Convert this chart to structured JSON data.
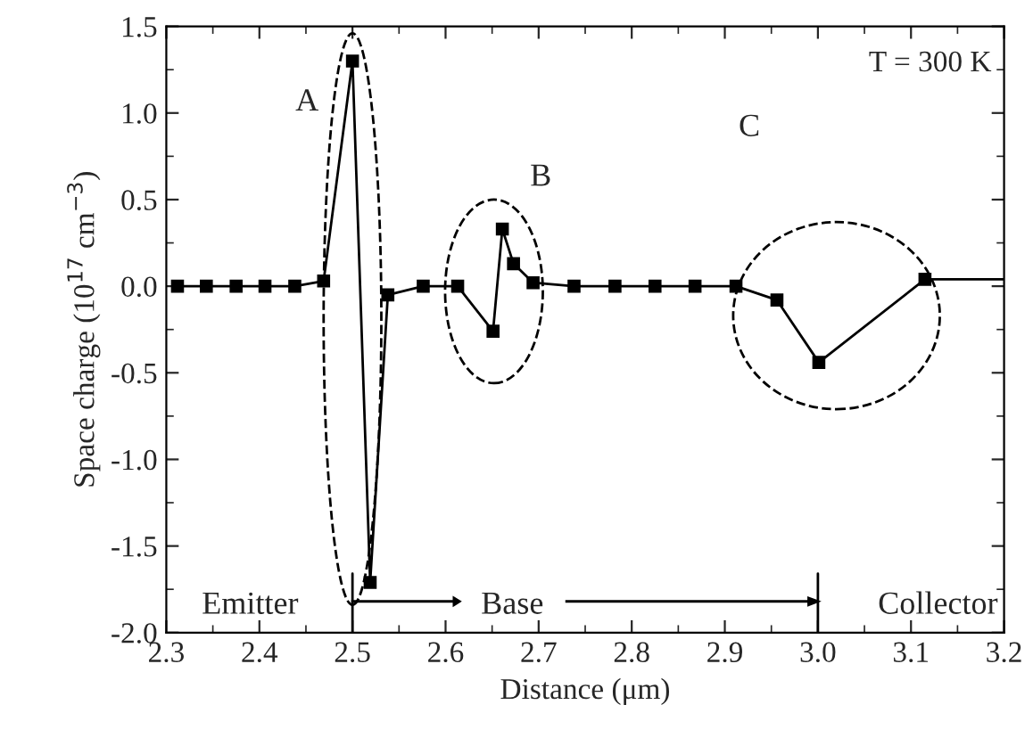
{
  "chart_data": {
    "type": "line",
    "xlabel": "Distance (μm)",
    "ylabel": "Space charge (10$^{17}$ cm$^{−3}$)",
    "series": [
      {
        "color": "#000000",
        "marker": "square",
        "x": [
          2.312,
          2.343,
          2.375,
          2.406,
          2.438,
          2.469,
          2.5,
          2.519,
          2.538,
          2.576,
          2.613,
          2.651,
          2.661,
          2.673,
          2.694,
          2.738,
          2.782,
          2.825,
          2.868,
          2.912,
          2.956,
          3.001,
          3.115
        ],
        "values": [
          0.0,
          0.0,
          0.0,
          0.0,
          0.0,
          0.03,
          1.3,
          -1.71,
          -0.05,
          0.0,
          0.0,
          -0.26,
          0.33,
          0.13,
          0.02,
          0.0,
          0.0,
          0.0,
          0.0,
          0.0,
          -0.08,
          -0.44,
          0.04
        ]
      },
      {
        "color": "#000000",
        "marker": "none",
        "x": [
          3.115,
          3.2
        ],
        "values": [
          0.04,
          0.04
        ]
      }
    ],
    "xlim": [
      2.3,
      3.2
    ],
    "xticks": [
      2.3,
      2.4,
      2.5,
      2.6,
      2.7,
      2.8,
      2.9,
      {
        "value": 3.0,
        "label": "3.0"
      },
      3.1,
      3.2
    ],
    "ylim": [
      -2.0,
      1.5
    ],
    "yticks": [
      {
        "value": -2.0,
        "label": "-2.0"
      },
      -1.5,
      {
        "value": -1.0,
        "label": "-1.0"
      },
      -0.5,
      {
        "value": 0.0,
        "label": "0.0"
      },
      0.5,
      {
        "value": 1.0,
        "label": "1.0"
      },
      1.5
    ],
    "line_style": "solid",
    "grid": false,
    "legend": false,
    "annotations": [
      "A",
      "B",
      "C",
      "T = 300 K",
      "Emitter",
      "Base",
      "Collector"
    ]
  }
}
